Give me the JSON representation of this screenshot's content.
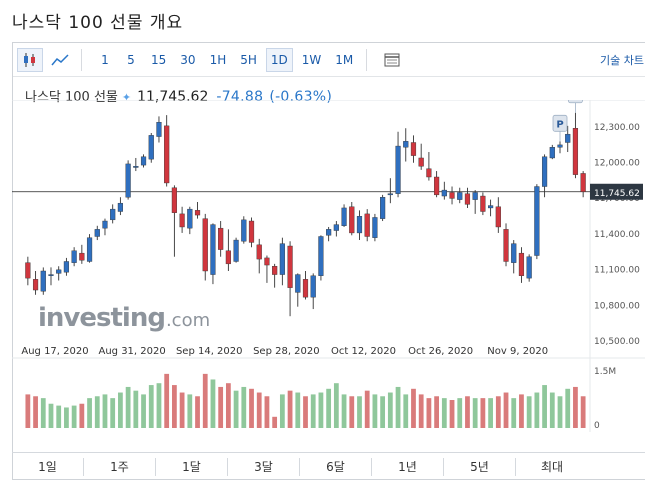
{
  "page_title": "나스닥 100 선물 개요",
  "toolbar": {
    "intervals": [
      "1",
      "5",
      "15",
      "30",
      "1H",
      "5H",
      "1D",
      "1W",
      "1M"
    ],
    "active_interval": "1D",
    "right_label": "기술 차트",
    "icons": [
      "candlestick-icon",
      "line-chart-icon",
      "table-icon"
    ]
  },
  "quote": {
    "name": "나스닥 100 선물",
    "price": "11,745.62",
    "change": "-74.88",
    "change_pct": "(-0.63%)"
  },
  "colors": {
    "up": "#2f6fbf",
    "down": "#d0363e",
    "vol_up": "#8fc79b",
    "vol_down": "#d97b7b",
    "price_tag": "#2d3742"
  },
  "watermark": {
    "main": "investing",
    "suffix": ".com"
  },
  "range_buttons": [
    "1일",
    "1주",
    "1달",
    "3달",
    "6달",
    "1년",
    "5년",
    "최대"
  ],
  "chart_data": {
    "type": "candlestick",
    "x_ticks": [
      "Aug 17, 2020",
      "Aug 31, 2020",
      "Sep 14, 2020",
      "Sep 28, 2020",
      "Oct 12, 2020",
      "Oct 26, 2020",
      "Nov 9, 2020"
    ],
    "y_ticks": [
      "12,300.00",
      "12,000.00",
      "11,700.00",
      "11,400.00",
      "11,100.00",
      "10,800.00",
      "10,500.00"
    ],
    "ylim": [
      10500,
      12450
    ],
    "volume_ticks": [
      "1.5M",
      "0"
    ],
    "last_price_label": "11,745.62",
    "markers": [
      "P",
      "P"
    ],
    "candles": [
      {
        "o": 11150,
        "h": 11200,
        "l": 10960,
        "c": 11020
      },
      {
        "o": 11010,
        "h": 11080,
        "l": 10880,
        "c": 10920
      },
      {
        "o": 10910,
        "h": 11110,
        "l": 10880,
        "c": 11080
      },
      {
        "o": 11040,
        "h": 11110,
        "l": 10960,
        "c": 11050
      },
      {
        "o": 11060,
        "h": 11120,
        "l": 11000,
        "c": 11090
      },
      {
        "o": 11070,
        "h": 11190,
        "l": 11040,
        "c": 11160
      },
      {
        "o": 11150,
        "h": 11280,
        "l": 11120,
        "c": 11250
      },
      {
        "o": 11230,
        "h": 11300,
        "l": 11140,
        "c": 11170
      },
      {
        "o": 11160,
        "h": 11390,
        "l": 11150,
        "c": 11360
      },
      {
        "o": 11370,
        "h": 11460,
        "l": 11340,
        "c": 11430
      },
      {
        "o": 11440,
        "h": 11520,
        "l": 11380,
        "c": 11500
      },
      {
        "o": 11510,
        "h": 11640,
        "l": 11480,
        "c": 11600
      },
      {
        "o": 11580,
        "h": 11700,
        "l": 11550,
        "c": 11650
      },
      {
        "o": 11700,
        "h": 12010,
        "l": 11680,
        "c": 11980
      },
      {
        "o": 11960,
        "h": 12030,
        "l": 11920,
        "c": 11960
      },
      {
        "o": 11970,
        "h": 12060,
        "l": 11950,
        "c": 12040
      },
      {
        "o": 12020,
        "h": 12240,
        "l": 11990,
        "c": 12220
      },
      {
        "o": 12210,
        "h": 12380,
        "l": 12160,
        "c": 12330
      },
      {
        "o": 12300,
        "h": 12390,
        "l": 11790,
        "c": 11820
      },
      {
        "o": 11780,
        "h": 11800,
        "l": 11200,
        "c": 11570
      },
      {
        "o": 11560,
        "h": 11620,
        "l": 11400,
        "c": 11450
      },
      {
        "o": 11440,
        "h": 11620,
        "l": 11390,
        "c": 11600
      },
      {
        "o": 11590,
        "h": 11660,
        "l": 11520,
        "c": 11550
      },
      {
        "o": 11520,
        "h": 11560,
        "l": 11000,
        "c": 11080
      },
      {
        "o": 11050,
        "h": 11480,
        "l": 10970,
        "c": 11470
      },
      {
        "o": 11440,
        "h": 11500,
        "l": 11200,
        "c": 11260
      },
      {
        "o": 11250,
        "h": 11430,
        "l": 11080,
        "c": 11140
      },
      {
        "o": 11160,
        "h": 11360,
        "l": 11150,
        "c": 11340
      },
      {
        "o": 11330,
        "h": 11540,
        "l": 11310,
        "c": 11510
      },
      {
        "o": 11500,
        "h": 11530,
        "l": 11280,
        "c": 11320
      },
      {
        "o": 11300,
        "h": 11350,
        "l": 11060,
        "c": 11180
      },
      {
        "o": 11190,
        "h": 11210,
        "l": 10980,
        "c": 11130
      },
      {
        "o": 11120,
        "h": 11140,
        "l": 10940,
        "c": 11050
      },
      {
        "o": 11050,
        "h": 11360,
        "l": 10960,
        "c": 11310
      },
      {
        "o": 11290,
        "h": 11330,
        "l": 10700,
        "c": 10940
      },
      {
        "o": 10900,
        "h": 11060,
        "l": 10780,
        "c": 11050
      },
      {
        "o": 11010,
        "h": 11080,
        "l": 10840,
        "c": 10860
      },
      {
        "o": 10860,
        "h": 11060,
        "l": 10760,
        "c": 11040
      },
      {
        "o": 11040,
        "h": 11380,
        "l": 11000,
        "c": 11370
      },
      {
        "o": 11380,
        "h": 11450,
        "l": 11330,
        "c": 11430
      },
      {
        "o": 11420,
        "h": 11500,
        "l": 11370,
        "c": 11470
      },
      {
        "o": 11460,
        "h": 11640,
        "l": 11450,
        "c": 11610
      },
      {
        "o": 11620,
        "h": 11660,
        "l": 11380,
        "c": 11400
      },
      {
        "o": 11400,
        "h": 11590,
        "l": 11340,
        "c": 11540
      },
      {
        "o": 11560,
        "h": 11600,
        "l": 11330,
        "c": 11370
      },
      {
        "o": 11360,
        "h": 11560,
        "l": 11330,
        "c": 11530
      },
      {
        "o": 11520,
        "h": 11720,
        "l": 11500,
        "c": 11700
      },
      {
        "o": 11720,
        "h": 11860,
        "l": 11650,
        "c": 11730
      },
      {
        "o": 11730,
        "h": 12250,
        "l": 11700,
        "c": 12130
      },
      {
        "o": 12120,
        "h": 12280,
        "l": 12000,
        "c": 12170
      },
      {
        "o": 12160,
        "h": 12220,
        "l": 11990,
        "c": 12050
      },
      {
        "o": 12030,
        "h": 12150,
        "l": 11930,
        "c": 11960
      },
      {
        "o": 11940,
        "h": 12080,
        "l": 11840,
        "c": 11870
      },
      {
        "o": 11870,
        "h": 11920,
        "l": 11700,
        "c": 11720
      },
      {
        "o": 11710,
        "h": 11830,
        "l": 11680,
        "c": 11760
      },
      {
        "o": 11740,
        "h": 11790,
        "l": 11640,
        "c": 11690
      },
      {
        "o": 11680,
        "h": 11780,
        "l": 11650,
        "c": 11740
      },
      {
        "o": 11730,
        "h": 11780,
        "l": 11610,
        "c": 11640
      },
      {
        "o": 11680,
        "h": 11760,
        "l": 11560,
        "c": 11740
      },
      {
        "o": 11710,
        "h": 11740,
        "l": 11550,
        "c": 11580
      },
      {
        "o": 11610,
        "h": 11680,
        "l": 11540,
        "c": 11630
      },
      {
        "o": 11620,
        "h": 11700,
        "l": 11400,
        "c": 11450
      },
      {
        "o": 11430,
        "h": 11480,
        "l": 11120,
        "c": 11160
      },
      {
        "o": 11150,
        "h": 11340,
        "l": 11060,
        "c": 11310
      },
      {
        "o": 11230,
        "h": 11280,
        "l": 10980,
        "c": 11040
      },
      {
        "o": 11020,
        "h": 11220,
        "l": 10990,
        "c": 11200
      },
      {
        "o": 11210,
        "h": 11810,
        "l": 11180,
        "c": 11790
      },
      {
        "o": 11790,
        "h": 12060,
        "l": 11700,
        "c": 12040
      },
      {
        "o": 12030,
        "h": 12140,
        "l": 12020,
        "c": 12120
      },
      {
        "o": 12120,
        "h": 12170,
        "l": 12070,
        "c": 12140
      },
      {
        "o": 12160,
        "h": 12300,
        "l": 12080,
        "c": 12230
      },
      {
        "o": 12280,
        "h": 12410,
        "l": 11860,
        "c": 11890
      },
      {
        "o": 11900,
        "h": 11920,
        "l": 11700,
        "c": 11746
      }
    ],
    "volumes": [
      0.9,
      0.85,
      0.8,
      0.65,
      0.6,
      0.55,
      0.6,
      0.65,
      0.8,
      0.85,
      0.9,
      0.8,
      0.95,
      1.1,
      1.0,
      0.9,
      1.15,
      1.2,
      1.45,
      1.15,
      0.95,
      0.9,
      0.85,
      1.45,
      1.3,
      1.1,
      1.2,
      1.0,
      1.1,
      1.05,
      0.95,
      0.85,
      0.3,
      0.9,
      1.0,
      0.95,
      0.85,
      0.9,
      0.95,
      1.05,
      1.2,
      0.9,
      0.85,
      0.85,
      1.0,
      0.9,
      0.85,
      0.95,
      1.1,
      0.9,
      1.05,
      0.9,
      0.8,
      0.85,
      0.8,
      0.75,
      0.8,
      0.85,
      0.8,
      0.8,
      0.8,
      0.85,
      0.95,
      0.8,
      0.9,
      0.85,
      0.95,
      1.15,
      0.95,
      0.85,
      1.05,
      1.1,
      0.85
    ]
  }
}
